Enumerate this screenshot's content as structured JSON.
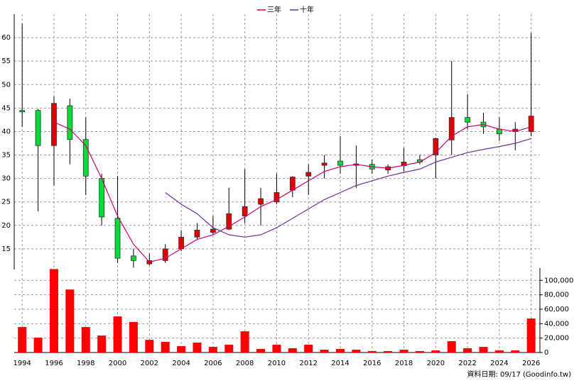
{
  "chart_data": {
    "type": "candlestick",
    "x": [
      1994,
      1995,
      1996,
      1997,
      1998,
      1999,
      2000,
      2001,
      2002,
      2003,
      2004,
      2005,
      2006,
      2007,
      2008,
      2009,
      2010,
      2011,
      2012,
      2013,
      2014,
      2015,
      2016,
      2017,
      2018,
      2019,
      2020,
      2021,
      2022,
      2023,
      2024,
      2025,
      2026
    ],
    "open": [
      44.5,
      44.5,
      37,
      45.5,
      38.3,
      30,
      21.5,
      13.5,
      11.8,
      12.5,
      15,
      17.5,
      18.5,
      19.2,
      22,
      24.5,
      25,
      27.5,
      30.5,
      32.8,
      33.7,
      32.8,
      33,
      31.8,
      32.7,
      34,
      35,
      38.2,
      43,
      42,
      40.5,
      40,
      40
    ],
    "high": [
      63,
      44.8,
      47.5,
      47,
      43,
      31,
      30.5,
      15,
      14,
      16,
      19,
      20.5,
      22,
      28,
      32,
      28,
      31,
      30.5,
      33,
      35,
      39,
      37,
      34,
      33,
      36.5,
      35,
      38.7,
      55,
      48,
      44,
      43,
      42,
      61
    ],
    "low": [
      41,
      23,
      28.5,
      33,
      26.5,
      20,
      12,
      11,
      11.5,
      12,
      14.5,
      17,
      18,
      19,
      20.5,
      20,
      24.5,
      26,
      26.5,
      30,
      31,
      28,
      31,
      31,
      31.5,
      33,
      30,
      35,
      40.5,
      39.5,
      38,
      36,
      39
    ],
    "close": [
      44.2,
      37,
      46,
      38.3,
      30.5,
      21.8,
      13,
      12.5,
      12.5,
      15,
      17.5,
      19,
      19.2,
      22.5,
      24,
      25.7,
      27,
      30.3,
      31.3,
      33.3,
      32.8,
      33.1,
      32,
      32.5,
      33.5,
      33.5,
      38.5,
      43,
      42,
      41,
      39.5,
      40.5,
      43.3
    ],
    "up_color": "#e00000",
    "down_color": "#00dd33",
    "series": [
      {
        "name": "三年",
        "color": "#d0006f",
        "values": [
          null,
          null,
          42,
          40.5,
          37,
          30,
          22,
          16,
          12.2,
          13,
          15,
          17,
          18,
          19.8,
          21.8,
          24,
          25.5,
          27.5,
          29.5,
          31.5,
          32.5,
          33,
          32.5,
          32.2,
          32.8,
          33.5,
          35.5,
          39,
          41,
          41.5,
          40.5,
          40,
          41
        ]
      },
      {
        "name": "十年",
        "color": "#7030a0",
        "values": [
          null,
          null,
          null,
          null,
          null,
          null,
          null,
          null,
          null,
          27,
          24.5,
          22.5,
          19.5,
          18,
          17.5,
          18,
          19.5,
          21.5,
          23.5,
          25.5,
          27,
          28.5,
          29.5,
          30.5,
          31.3,
          32,
          33.5,
          34.5,
          35.5,
          36.2,
          36.8,
          37.5,
          38.5
        ]
      }
    ],
    "volume": {
      "color": "#ff0000",
      "values": [
        35300,
        20600,
        115700,
        87300,
        35300,
        23500,
        50000,
        42200,
        17600,
        14700,
        8800,
        13700,
        7800,
        10800,
        29400,
        4900,
        10800,
        5900,
        10800,
        3900,
        4900,
        3900,
        2000,
        2000,
        3900,
        2000,
        2900,
        15700,
        5900,
        7800,
        2900,
        2900,
        47100
      ],
      "ylim": [
        0,
        117000
      ],
      "yticks": [
        0,
        {
          "value": 20000,
          "label": "20,000"
        },
        {
          "value": 40000,
          "label": "40,000"
        },
        {
          "value": 60000,
          "label": "60,000"
        },
        {
          "value": 80000,
          "label": "80,000"
        },
        {
          "value": 100000,
          "label": "100,000"
        }
      ]
    },
    "ylim": [
      10.6,
      65
    ],
    "yticks": [
      15,
      20,
      25,
      30,
      35,
      40,
      45,
      50,
      55,
      60
    ],
    "xlim": [
      1993.5,
      2026.55
    ],
    "xticks": [
      1994,
      1996,
      1998,
      2000,
      2002,
      2004,
      2006,
      2008,
      2010,
      2012,
      2014,
      2016,
      2018,
      2020,
      2022,
      2024,
      2026
    ],
    "grid": true,
    "footnote": "資料日期: 09/17 (Goodinfo.tw)"
  }
}
